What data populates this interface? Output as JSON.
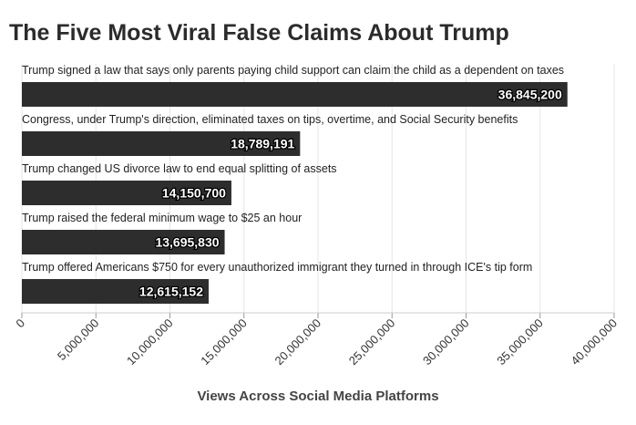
{
  "chart_data": {
    "type": "bar",
    "orientation": "horizontal",
    "title": "The Five Most Viral False Claims About Trump",
    "xlabel": "Views Across Social Media Platforms",
    "ylabel": "",
    "xlim": [
      0,
      40000000
    ],
    "x_ticks": [
      "0",
      "5,000,000",
      "10,000,000",
      "15,000,000",
      "20,000,000",
      "25,000,000",
      "30,000,000",
      "35,000,000",
      "40,000,000"
    ],
    "grid": "vertical",
    "legend": "none",
    "categories": [
      "Trump signed a law that says only parents paying child support can claim the child as a dependent on taxes",
      "Congress, under Trump's direction, eliminated taxes on tips, overtime, and Social Security benefits",
      "Trump changed US divorce law to end equal splitting of assets",
      "Trump raised the federal minimum wage to $25 an hour",
      "Trump offered Americans $750 for every unauthorized immigrant they turned in through ICE's tip form"
    ],
    "values": [
      36845200,
      18789191,
      14150700,
      13695830,
      12615152
    ],
    "value_labels": [
      "36,845,200",
      "18,789,191",
      "14,150,700",
      "13,695,830",
      "12,615,152"
    ],
    "colors": {
      "bar": "#2d2d2d",
      "grid": "#e6e6e6",
      "text": "#222222",
      "value_label": "#ffffff"
    }
  }
}
